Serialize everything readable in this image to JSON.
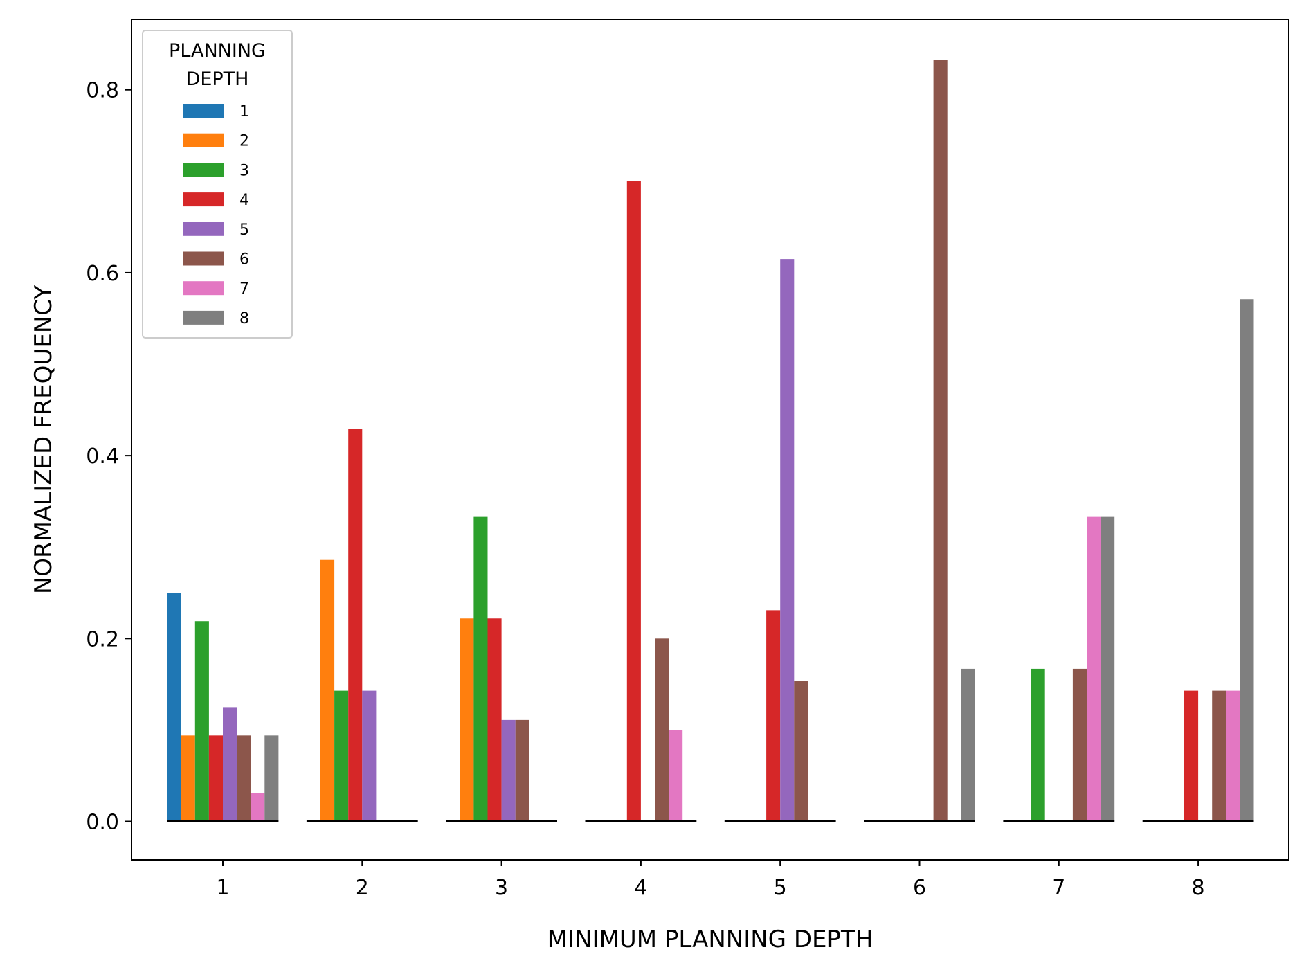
{
  "chart_data": {
    "type": "bar",
    "title": "",
    "xlabel": "MINIMUM PLANNING DEPTH",
    "ylabel": "NORMALIZED FREQUENCY",
    "ylim": [
      -0.042,
      0.877
    ],
    "yticks": [
      "0.0",
      "0.2",
      "0.4",
      "0.6",
      "0.8"
    ],
    "ytick_values": [
      0.0,
      0.2,
      0.4,
      0.6,
      0.8
    ],
    "categories": [
      "1",
      "2",
      "3",
      "4",
      "5",
      "6",
      "7",
      "8"
    ],
    "grid": false,
    "legend": {
      "title_line1": "PLANNING",
      "title_line2": "DEPTH",
      "placement": "top-left"
    },
    "series": [
      {
        "name": "1",
        "color": "#1f77b4",
        "values": [
          0.25,
          0,
          0,
          0,
          0,
          0,
          0,
          0
        ]
      },
      {
        "name": "2",
        "color": "#ff7f0e",
        "values": [
          0.094,
          0.286,
          0.222,
          0,
          0,
          0,
          0,
          0
        ]
      },
      {
        "name": "3",
        "color": "#2ca02c",
        "values": [
          0.219,
          0.143,
          0.333,
          0,
          0,
          0,
          0.167,
          0
        ]
      },
      {
        "name": "4",
        "color": "#d62728",
        "values": [
          0.094,
          0.429,
          0.222,
          0.7,
          0.231,
          0,
          0,
          0.143
        ]
      },
      {
        "name": "5",
        "color": "#9467bd",
        "values": [
          0.125,
          0.143,
          0.111,
          0,
          0.615,
          0,
          0,
          0
        ]
      },
      {
        "name": "6",
        "color": "#8c564b",
        "values": [
          0.094,
          0,
          0.111,
          0.2,
          0.154,
          0.833,
          0.167,
          0.143
        ]
      },
      {
        "name": "7",
        "color": "#e377c2",
        "values": [
          0.031,
          0,
          0,
          0.1,
          0,
          0,
          0.333,
          0.143
        ]
      },
      {
        "name": "8",
        "color": "#7f7f7f",
        "values": [
          0.094,
          0,
          0,
          0,
          0,
          0.167,
          0.333,
          0.571
        ]
      }
    ]
  }
}
